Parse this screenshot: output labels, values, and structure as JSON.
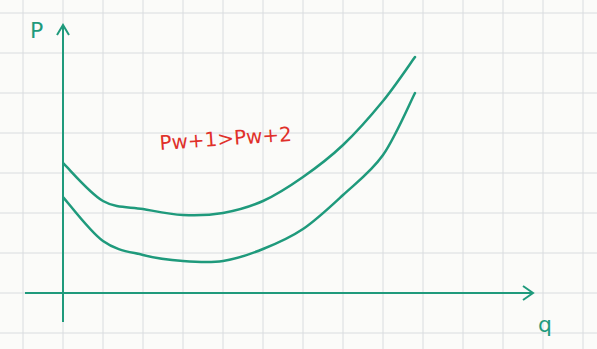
{
  "chart_data": {
    "type": "line",
    "x_label": "q",
    "y_label": "P",
    "annotations": [
      "Pw+1>Pw+2"
    ],
    "x": [
      0,
      1,
      2,
      3,
      4,
      5,
      6,
      7,
      8,
      8.8
    ],
    "series": [
      {
        "color": "#1f9a7c",
        "values": [
          3.25,
          2.3,
          2.1,
          1.95,
          2.0,
          2.3,
          2.9,
          3.7,
          4.8,
          5.9
        ]
      },
      {
        "color": "#1f9a7c",
        "values": [
          2.4,
          1.3,
          0.95,
          0.8,
          0.8,
          1.1,
          1.6,
          2.45,
          3.45,
          5.0
        ]
      }
    ],
    "xlim": [
      0,
      11.5
    ],
    "ylim": [
      0,
      6.7
    ],
    "tick_labels": false,
    "grid": true,
    "annotation_color": "#e0302a"
  }
}
